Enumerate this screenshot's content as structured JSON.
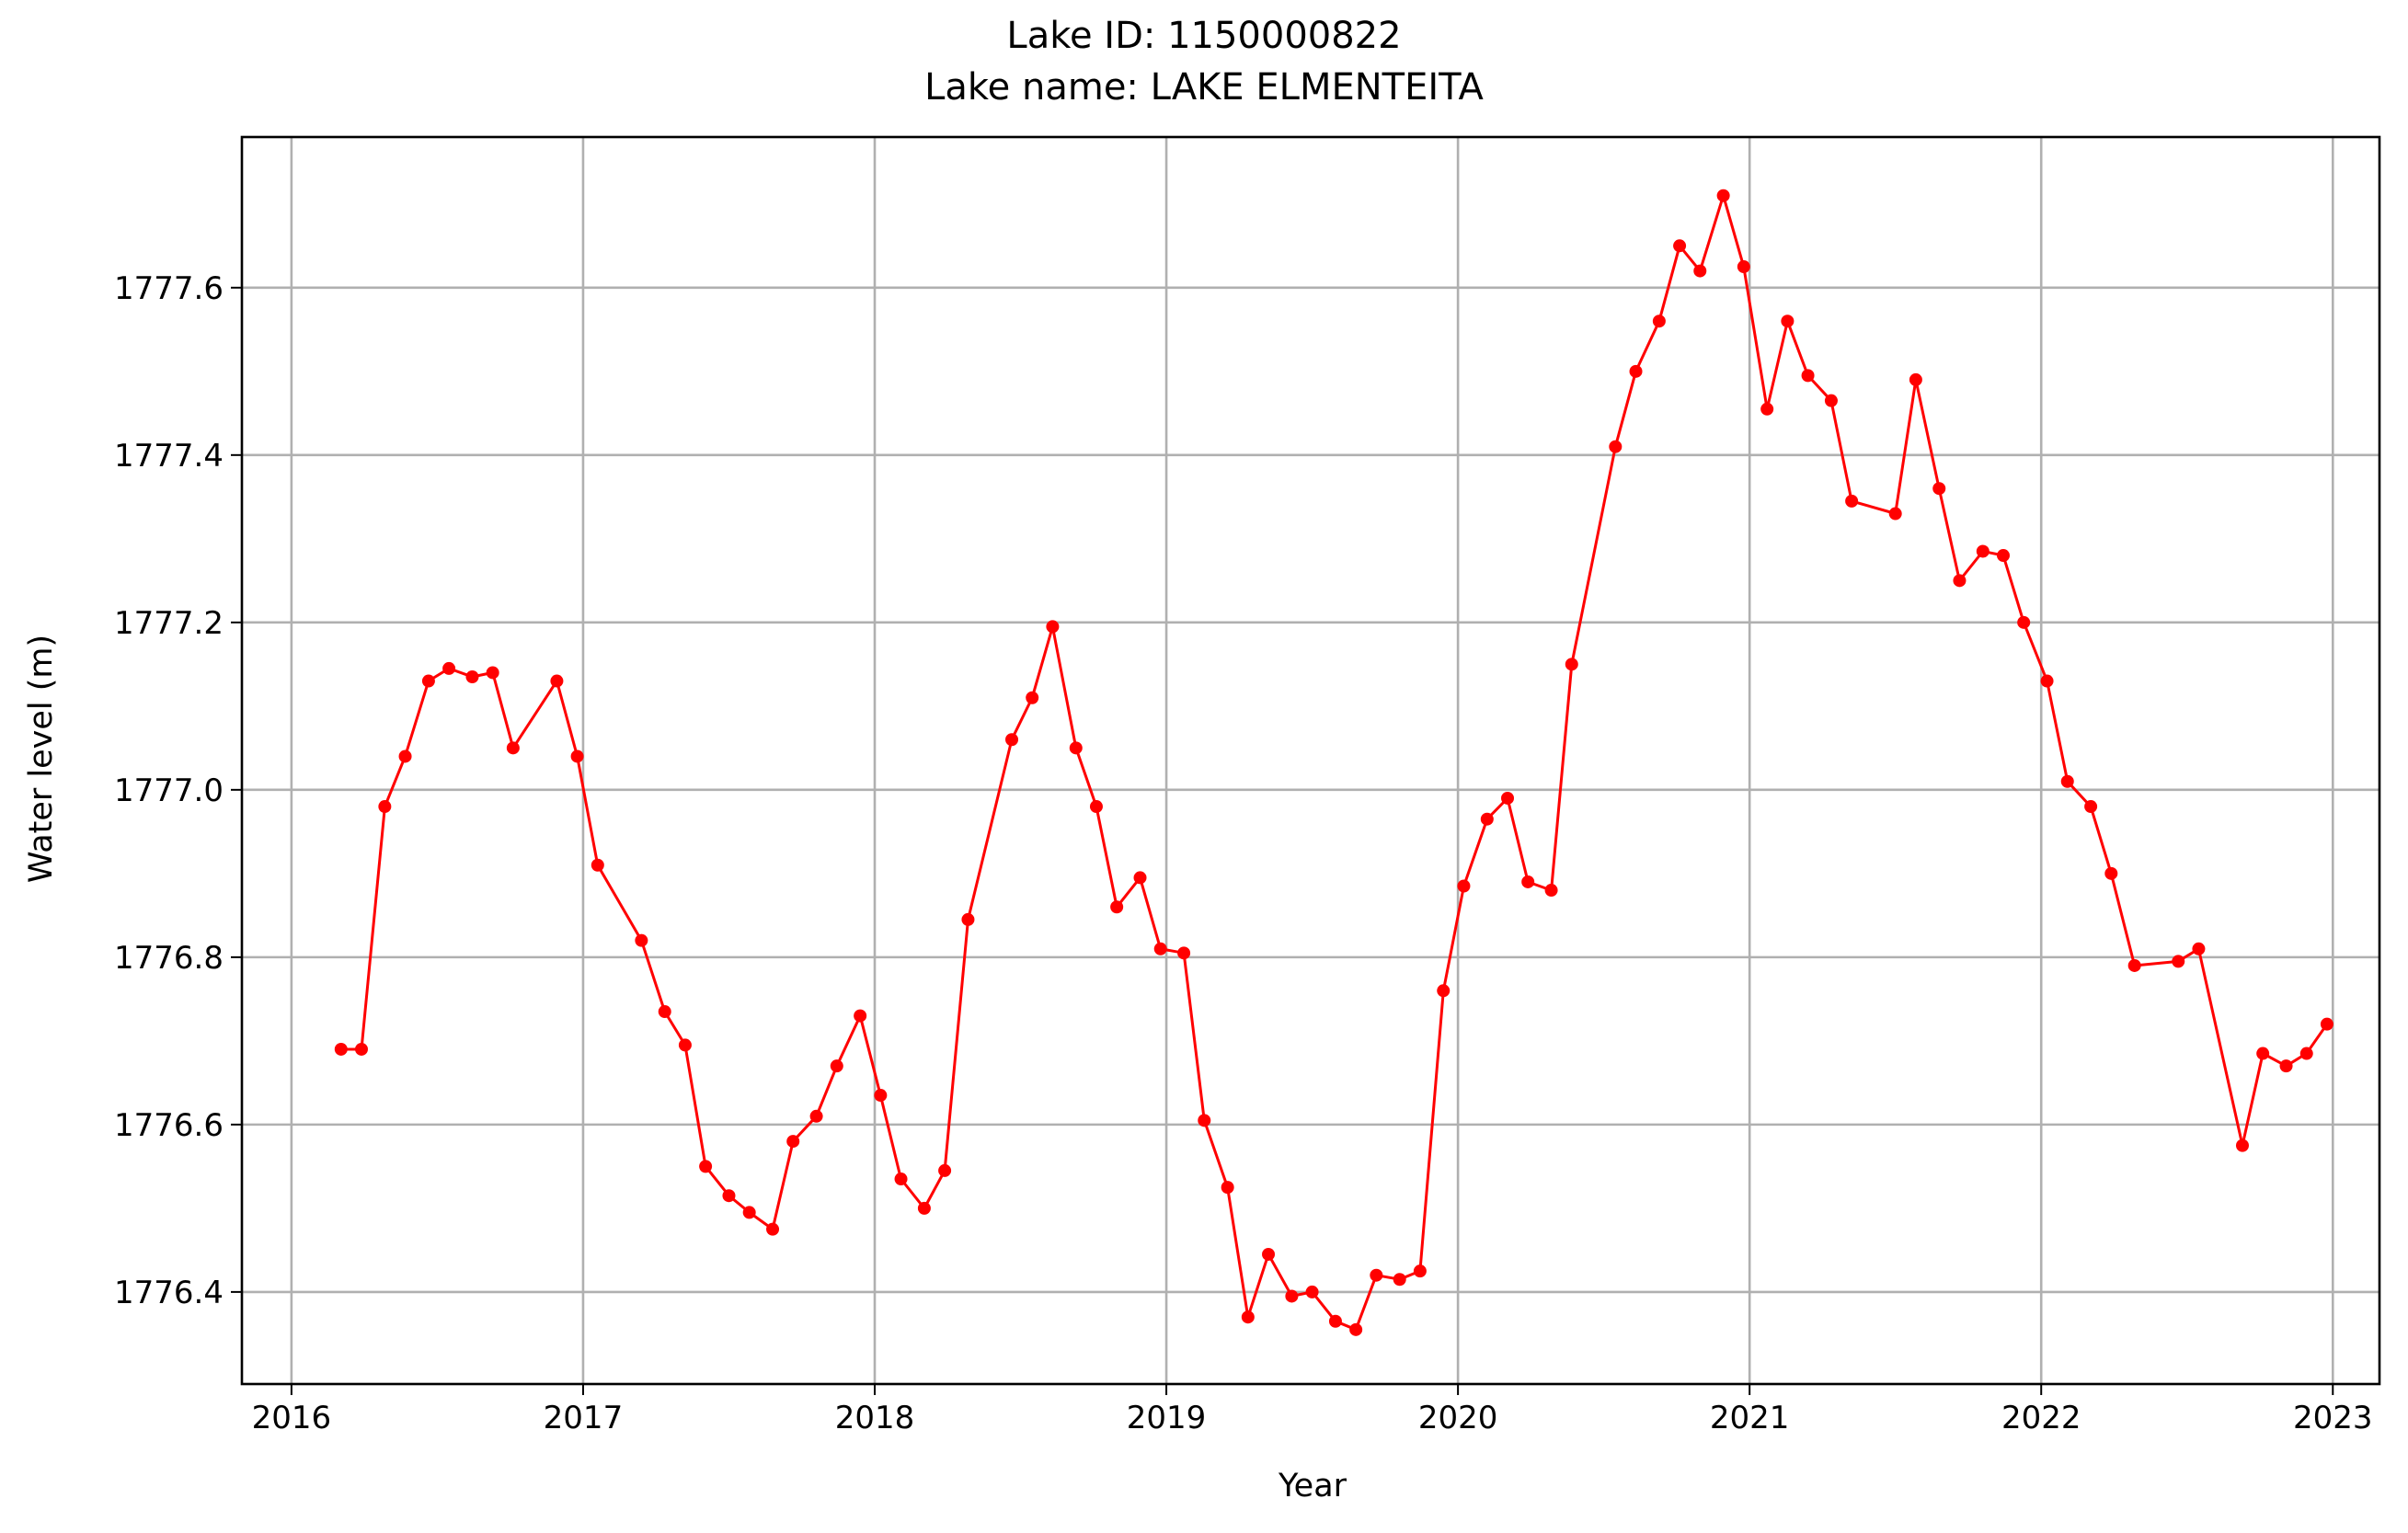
{
  "chart_data": {
    "type": "line",
    "title_line1": "Lake ID: 1150000822",
    "title_line2": "Lake name: LAKE ELMENTEITA",
    "xlabel": "Year",
    "ylabel": "Water level (m)",
    "xlim": [
      2015.83,
      2023.16
    ],
    "ylim": [
      1776.29,
      1777.78
    ],
    "x_ticks": [
      2016,
      2017,
      2018,
      2019,
      2020,
      2021,
      2022,
      2023
    ],
    "x_tick_labels": [
      "2016",
      "2017",
      "2018",
      "2019",
      "2020",
      "2021",
      "2022",
      "2023"
    ],
    "y_ticks": [
      1776.4,
      1776.6,
      1776.8,
      1777.0,
      1777.2,
      1777.4,
      1777.6
    ],
    "y_tick_labels": [
      "1776.4",
      "1776.6",
      "1776.8",
      "1777.0",
      "1777.2",
      "1777.4",
      "1777.6"
    ],
    "grid": true,
    "series": [
      {
        "color": "#ff0000",
        "marker": "circle",
        "x": [
          2016.17,
          2016.24,
          2016.32,
          2016.39,
          2016.47,
          2016.54,
          2016.62,
          2016.69,
          2016.76,
          2016.91,
          2016.98,
          2017.05,
          2017.2,
          2017.28,
          2017.35,
          2017.42,
          2017.5,
          2017.57,
          2017.65,
          2017.72,
          2017.8,
          2017.87,
          2017.95,
          2018.02,
          2018.09,
          2018.17,
          2018.24,
          2018.32,
          2018.47,
          2018.54,
          2018.61,
          2018.69,
          2018.76,
          2018.83,
          2018.91,
          2018.98,
          2019.06,
          2019.13,
          2019.21,
          2019.28,
          2019.35,
          2019.43,
          2019.5,
          2019.58,
          2019.65,
          2019.72,
          2019.8,
          2019.87,
          2019.95,
          2020.02,
          2020.1,
          2020.17,
          2020.24,
          2020.32,
          2020.39,
          2020.54,
          2020.61,
          2020.69,
          2020.76,
          2020.83,
          2020.91,
          2020.98,
          2021.06,
          2021.13,
          2021.2,
          2021.28,
          2021.35,
          2021.5,
          2021.57,
          2021.65,
          2021.72,
          2021.8,
          2021.87,
          2021.94,
          2022.02,
          2022.09,
          2022.17,
          2022.24,
          2022.32,
          2022.47,
          2022.54,
          2022.69,
          2022.76,
          2022.84,
          2022.91,
          2022.98
        ],
        "y": [
          1776.69,
          1776.69,
          1776.98,
          1777.04,
          1777.13,
          1777.145,
          1777.135,
          1777.14,
          1777.05,
          1777.13,
          1777.04,
          1776.91,
          1776.82,
          1776.735,
          1776.695,
          1776.55,
          1776.515,
          1776.495,
          1776.475,
          1776.58,
          1776.61,
          1776.67,
          1776.73,
          1776.635,
          1776.535,
          1776.5,
          1776.545,
          1776.845,
          1777.06,
          1777.11,
          1777.195,
          1777.05,
          1776.98,
          1776.86,
          1776.895,
          1776.81,
          1776.805,
          1776.605,
          1776.525,
          1776.37,
          1776.445,
          1776.395,
          1776.4,
          1776.365,
          1776.355,
          1776.42,
          1776.415,
          1776.425,
          1776.76,
          1776.885,
          1776.965,
          1776.99,
          1776.89,
          1776.88,
          1777.15,
          1777.41,
          1777.5,
          1777.56,
          1777.65,
          1777.62,
          1777.71,
          1777.625,
          1777.455,
          1777.56,
          1777.495,
          1777.465,
          1777.345,
          1777.33,
          1777.49,
          1777.36,
          1777.25,
          1777.285,
          1777.28,
          1777.2,
          1777.13,
          1777.01,
          1776.98,
          1776.9,
          1776.79,
          1776.795,
          1776.81,
          1776.575,
          1776.685,
          1776.67,
          1776.685,
          1776.72
        ]
      }
    ]
  }
}
